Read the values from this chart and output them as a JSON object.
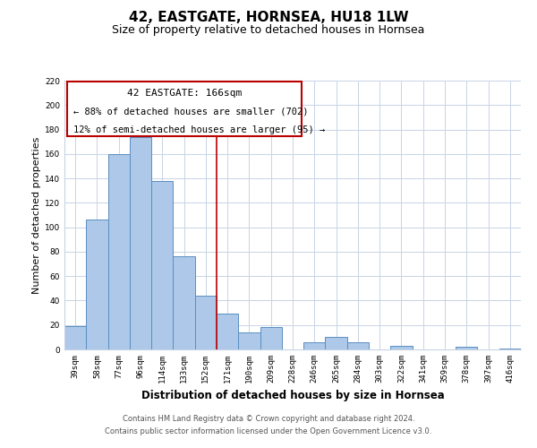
{
  "title": "42, EASTGATE, HORNSEA, HU18 1LW",
  "subtitle": "Size of property relative to detached houses in Hornsea",
  "xlabel": "Distribution of detached houses by size in Hornsea",
  "ylabel": "Number of detached properties",
  "categories": [
    "39sqm",
    "58sqm",
    "77sqm",
    "96sqm",
    "114sqm",
    "133sqm",
    "152sqm",
    "171sqm",
    "190sqm",
    "209sqm",
    "228sqm",
    "246sqm",
    "265sqm",
    "284sqm",
    "303sqm",
    "322sqm",
    "341sqm",
    "359sqm",
    "378sqm",
    "397sqm",
    "416sqm"
  ],
  "values": [
    19,
    106,
    160,
    174,
    138,
    76,
    44,
    29,
    14,
    18,
    0,
    6,
    10,
    6,
    0,
    3,
    0,
    0,
    2,
    0,
    1
  ],
  "bar_color": "#adc8e8",
  "bar_edge_color": "#5b8fc0",
  "vline_color": "#bb0000",
  "annotation_title": "42 EASTGATE: 166sqm",
  "annotation_line1": "← 88% of detached houses are smaller (702)",
  "annotation_line2": "12% of semi-detached houses are larger (95) →",
  "annotation_box_color": "#ffffff",
  "annotation_box_edge_color": "#bb0000",
  "ylim": [
    0,
    220
  ],
  "yticks": [
    0,
    20,
    40,
    60,
    80,
    100,
    120,
    140,
    160,
    180,
    200,
    220
  ],
  "footer_line1": "Contains HM Land Registry data © Crown copyright and database right 2024.",
  "footer_line2": "Contains public sector information licensed under the Open Government Licence v3.0.",
  "bg_color": "#ffffff",
  "grid_color": "#c8d4e4",
  "title_fontsize": 11,
  "subtitle_fontsize": 9,
  "ylabel_fontsize": 8,
  "xlabel_fontsize": 8.5,
  "tick_fontsize": 6.5,
  "annotation_title_fontsize": 8,
  "annotation_text_fontsize": 7.5,
  "footer_fontsize": 6
}
